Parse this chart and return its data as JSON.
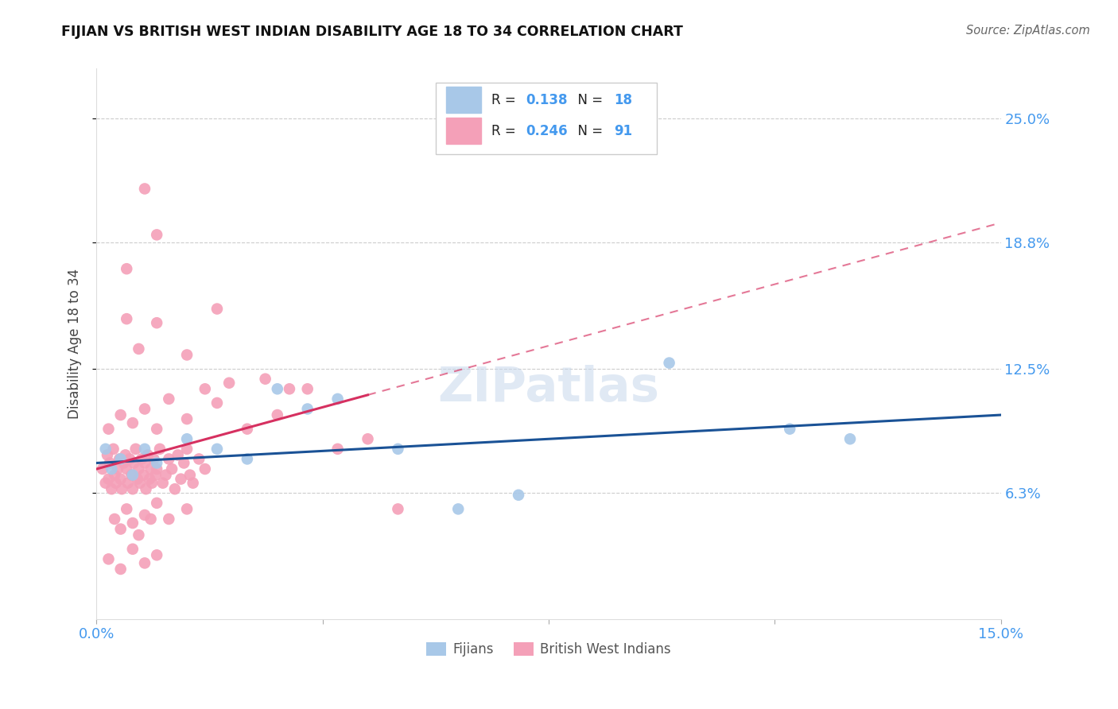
{
  "title": "FIJIAN VS BRITISH WEST INDIAN DISABILITY AGE 18 TO 34 CORRELATION CHART",
  "source": "Source: ZipAtlas.com",
  "ylabel": "Disability Age 18 to 34",
  "ylabel_ticks": [
    "6.3%",
    "12.5%",
    "18.8%",
    "25.0%"
  ],
  "ylabel_tick_vals": [
    6.3,
    12.5,
    18.8,
    25.0
  ],
  "xlim": [
    0.0,
    15.0
  ],
  "ylim": [
    0.0,
    27.5
  ],
  "legend_fijians": "Fijians",
  "legend_bwi": "British West Indians",
  "R_fijian": "0.138",
  "N_fijian": "18",
  "R_bwi": "0.246",
  "N_bwi": "91",
  "fijian_color": "#a8c8e8",
  "fijian_line_color": "#1a5296",
  "bwi_color": "#f4a0b8",
  "bwi_line_color": "#d63060",
  "fijian_line_x0": 0.0,
  "fijian_line_y0": 7.8,
  "fijian_line_x1": 15.0,
  "fijian_line_y1": 10.2,
  "bwi_solid_x0": 0.0,
  "bwi_solid_y0": 7.5,
  "bwi_solid_x1": 4.5,
  "bwi_solid_y1": 11.2,
  "bwi_dash_x0": 4.5,
  "bwi_dash_y0": 11.2,
  "bwi_dash_x1": 15.0,
  "bwi_dash_y1": 19.8,
  "bwi_points": [
    [
      0.1,
      7.5
    ],
    [
      0.15,
      6.8
    ],
    [
      0.18,
      8.2
    ],
    [
      0.2,
      7.0
    ],
    [
      0.22,
      7.8
    ],
    [
      0.25,
      6.5
    ],
    [
      0.28,
      8.5
    ],
    [
      0.3,
      7.2
    ],
    [
      0.32,
      6.8
    ],
    [
      0.35,
      7.5
    ],
    [
      0.38,
      8.0
    ],
    [
      0.4,
      7.0
    ],
    [
      0.42,
      6.5
    ],
    [
      0.45,
      7.8
    ],
    [
      0.48,
      8.2
    ],
    [
      0.5,
      7.5
    ],
    [
      0.52,
      6.8
    ],
    [
      0.55,
      8.0
    ],
    [
      0.58,
      7.2
    ],
    [
      0.6,
      6.5
    ],
    [
      0.62,
      7.8
    ],
    [
      0.65,
      8.5
    ],
    [
      0.68,
      7.0
    ],
    [
      0.7,
      7.5
    ],
    [
      0.72,
      6.8
    ],
    [
      0.75,
      8.0
    ],
    [
      0.78,
      7.2
    ],
    [
      0.8,
      7.8
    ],
    [
      0.82,
      6.5
    ],
    [
      0.85,
      8.2
    ],
    [
      0.88,
      7.0
    ],
    [
      0.9,
      7.5
    ],
    [
      0.92,
      6.8
    ],
    [
      0.95,
      8.0
    ],
    [
      0.98,
      7.2
    ],
    [
      1.0,
      7.5
    ],
    [
      1.05,
      8.5
    ],
    [
      1.1,
      6.8
    ],
    [
      1.15,
      7.2
    ],
    [
      1.2,
      8.0
    ],
    [
      1.25,
      7.5
    ],
    [
      1.3,
      6.5
    ],
    [
      1.35,
      8.2
    ],
    [
      1.4,
      7.0
    ],
    [
      1.45,
      7.8
    ],
    [
      1.5,
      8.5
    ],
    [
      1.55,
      7.2
    ],
    [
      1.6,
      6.8
    ],
    [
      1.7,
      8.0
    ],
    [
      1.8,
      7.5
    ],
    [
      0.3,
      5.0
    ],
    [
      0.5,
      5.5
    ],
    [
      0.6,
      4.8
    ],
    [
      0.8,
      5.2
    ],
    [
      1.0,
      5.8
    ],
    [
      1.2,
      5.0
    ],
    [
      1.5,
      5.5
    ],
    [
      0.4,
      4.5
    ],
    [
      0.7,
      4.2
    ],
    [
      0.9,
      5.0
    ],
    [
      0.2,
      9.5
    ],
    [
      0.4,
      10.2
    ],
    [
      0.6,
      9.8
    ],
    [
      0.8,
      10.5
    ],
    [
      1.0,
      9.5
    ],
    [
      1.5,
      10.0
    ],
    [
      2.0,
      10.8
    ],
    [
      2.5,
      9.5
    ],
    [
      3.0,
      10.2
    ],
    [
      3.5,
      11.5
    ],
    [
      0.5,
      15.0
    ],
    [
      0.7,
      13.5
    ],
    [
      1.0,
      14.8
    ],
    [
      1.5,
      13.2
    ],
    [
      2.0,
      15.5
    ],
    [
      0.5,
      17.5
    ],
    [
      1.0,
      19.2
    ],
    [
      0.8,
      21.5
    ],
    [
      1.2,
      11.0
    ],
    [
      1.8,
      11.5
    ],
    [
      2.2,
      11.8
    ],
    [
      2.8,
      12.0
    ],
    [
      3.2,
      11.5
    ],
    [
      4.0,
      8.5
    ],
    [
      4.5,
      9.0
    ],
    [
      5.0,
      5.5
    ],
    [
      0.2,
      3.0
    ],
    [
      0.4,
      2.5
    ],
    [
      0.6,
      3.5
    ],
    [
      0.8,
      2.8
    ],
    [
      1.0,
      3.2
    ]
  ],
  "fijian_points": [
    [
      0.15,
      8.5
    ],
    [
      0.25,
      7.5
    ],
    [
      0.4,
      8.0
    ],
    [
      0.6,
      7.2
    ],
    [
      0.8,
      8.5
    ],
    [
      1.0,
      7.8
    ],
    [
      1.5,
      9.0
    ],
    [
      2.0,
      8.5
    ],
    [
      2.5,
      8.0
    ],
    [
      3.0,
      11.5
    ],
    [
      3.5,
      10.5
    ],
    [
      4.0,
      11.0
    ],
    [
      5.0,
      8.5
    ],
    [
      6.0,
      5.5
    ],
    [
      7.0,
      6.2
    ],
    [
      9.5,
      12.8
    ],
    [
      11.5,
      9.5
    ],
    [
      12.5,
      9.0
    ]
  ]
}
